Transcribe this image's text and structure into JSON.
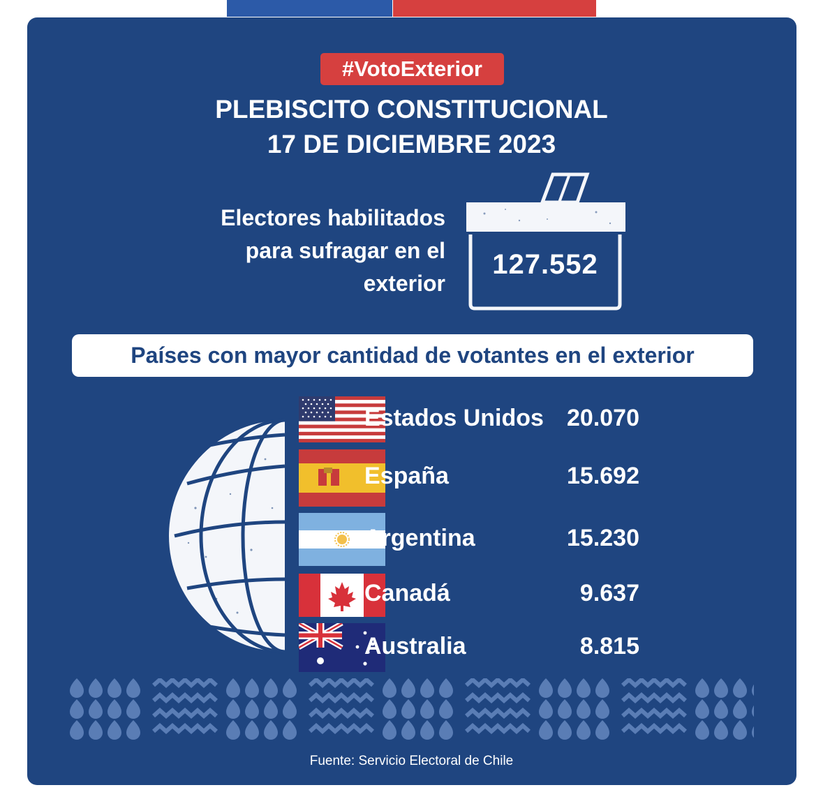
{
  "header": {
    "hashtag": "#VotoExterior",
    "title_line1": "PLEBISCITO CONSTITUCIONAL",
    "title_line2": "17 DE DICIEMBRE 2023"
  },
  "electors": {
    "label_lines": [
      "Electores habilitados",
      "para sufragar en el",
      "exterior"
    ],
    "count": "127.552"
  },
  "countries_banner": "Países con mayor cantidad de votantes en el exterior",
  "countries": [
    {
      "name": "Estados Unidos",
      "votes": "20.070",
      "flag": "usa-flag"
    },
    {
      "name": "España",
      "votes": "15.692",
      "flag": "spain-flag"
    },
    {
      "name": "Argentina",
      "votes": "15.230",
      "flag": "argentina-flag"
    },
    {
      "name": "Canadá",
      "votes": "9.637",
      "flag": "canada-flag"
    },
    {
      "name": "Australia",
      "votes": "8.815",
      "flag": "australia-flag"
    }
  ],
  "footer": {
    "source": "Fuente: Servicio Electoral de Chile"
  },
  "colors": {
    "navy": "#1f4580",
    "red": "#d6403f",
    "blue_bar": "#2c5aa8",
    "pattern": "#5a7db5",
    "white": "#ffffff"
  }
}
